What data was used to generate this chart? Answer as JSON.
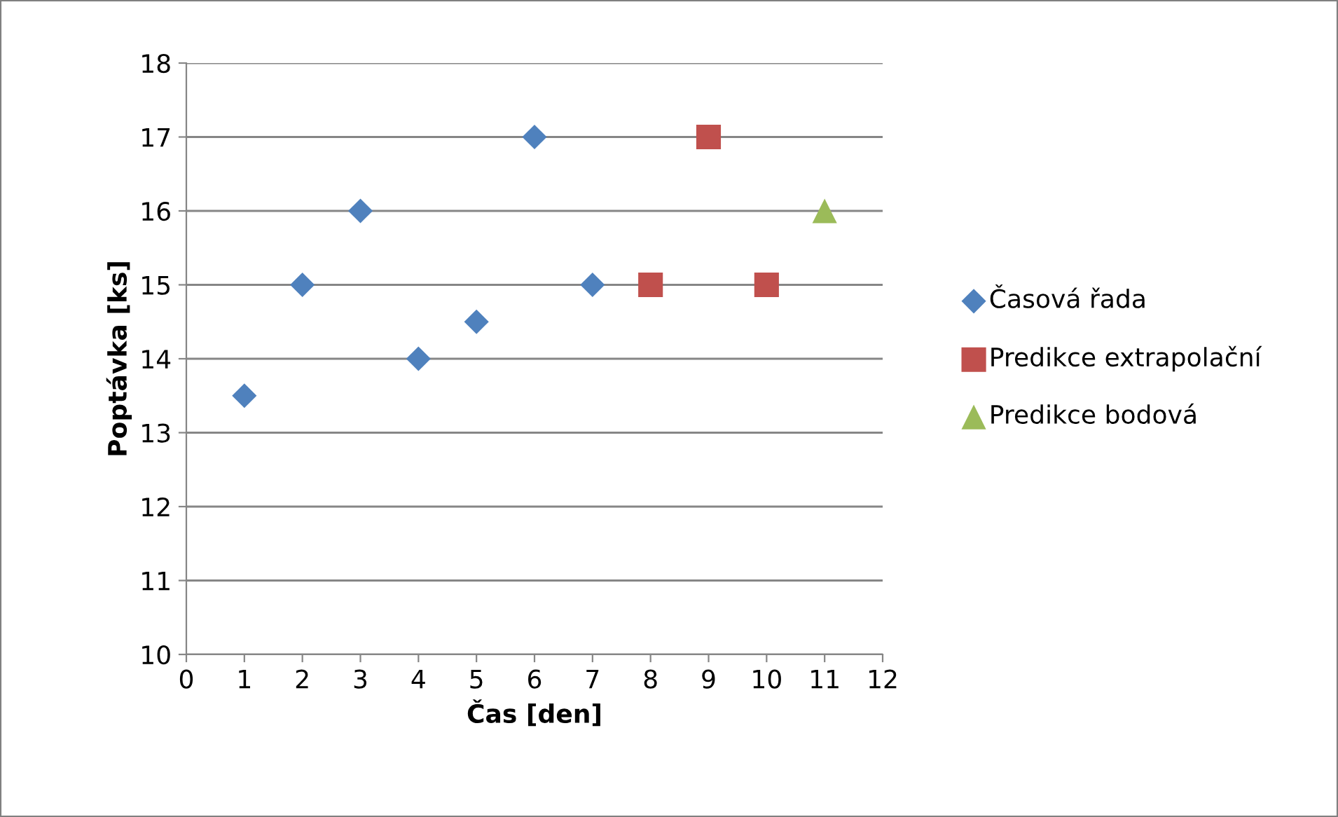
{
  "chart_data": {
    "type": "scatter",
    "xlabel": "Čas [den]",
    "ylabel": "Poptávka [ks]",
    "xlim": [
      0,
      12
    ],
    "xticks": [
      0,
      1,
      2,
      3,
      4,
      5,
      6,
      7,
      8,
      9,
      10,
      11,
      12
    ],
    "ylim": [
      10,
      18
    ],
    "yticks": [
      10,
      11,
      12,
      13,
      14,
      15,
      16,
      17,
      18
    ],
    "grid": "y",
    "legend": "right",
    "series": [
      {
        "name": "Časová řada",
        "color": "#4f81bd",
        "marker": "diamond",
        "x": [
          1,
          2,
          3,
          4,
          5,
          6,
          7
        ],
        "values": [
          13.5,
          15,
          16,
          14,
          14.5,
          17,
          15
        ]
      },
      {
        "name": "Predikce extrapolační",
        "color": "#c0504d",
        "marker": "square",
        "x": [
          8,
          9,
          10
        ],
        "values": [
          15,
          17,
          15
        ]
      },
      {
        "name": "Predikce bodová",
        "color": "#9bbb59",
        "marker": "triangle",
        "x": [
          11
        ],
        "values": [
          16
        ]
      }
    ]
  }
}
